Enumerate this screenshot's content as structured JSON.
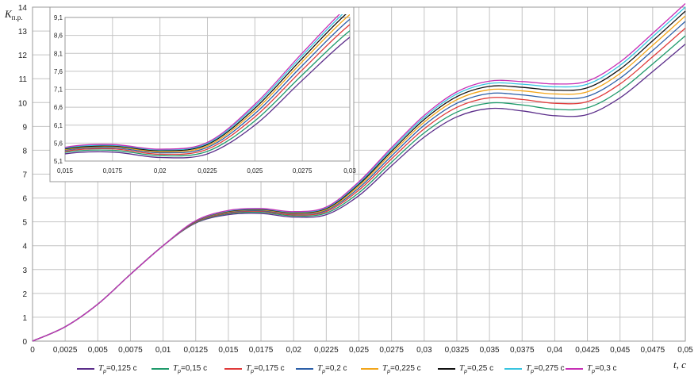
{
  "chart_data": {
    "type": "line",
    "y_axis_label": {
      "main": "K",
      "sub": "п.р."
    },
    "x_axis_label": "t, c",
    "xlim": [
      0,
      0.05
    ],
    "ylim": [
      0,
      14
    ],
    "x_ticks": [
      "0",
      "0,0025",
      "0,005",
      "0,0075",
      "0,01",
      "0,0125",
      "0,015",
      "0,0175",
      "0,02",
      "0,0225",
      "0,025",
      "0,0275",
      "0,03",
      "0,0325",
      "0,035",
      "0,0375",
      "0,04",
      "0,0425",
      "0,045",
      "0,0475",
      "0,05"
    ],
    "y_ticks": [
      "0",
      "1",
      "2",
      "3",
      "4",
      "5",
      "6",
      "7",
      "8",
      "9",
      "10",
      "11",
      "12",
      "13",
      "14"
    ],
    "grid": true,
    "x": [
      0,
      0.0025,
      0.005,
      0.0075,
      0.01,
      0.0125,
      0.015,
      0.0175,
      0.02,
      0.0225,
      0.025,
      0.0275,
      0.03,
      0.0325,
      0.035,
      0.0375,
      0.04,
      0.0425,
      0.045,
      0.0475,
      0.05
    ],
    "series": [
      {
        "name": "Tp=0,125 c",
        "color": "#5b2d8a",
        "values": [
          0,
          0.6,
          1.55,
          2.8,
          4.0,
          4.95,
          5.3,
          5.35,
          5.2,
          5.3,
          6.1,
          7.35,
          8.55,
          9.4,
          9.75,
          9.65,
          9.45,
          9.5,
          10.2,
          11.3,
          12.45
        ]
      },
      {
        "name": "Tp=0,15 c",
        "color": "#1f9a6b",
        "values": [
          0,
          0.6,
          1.55,
          2.8,
          4.0,
          4.97,
          5.34,
          5.4,
          5.25,
          5.37,
          6.22,
          7.5,
          8.73,
          9.6,
          9.98,
          9.9,
          9.72,
          9.78,
          10.5,
          11.62,
          12.8
        ]
      },
      {
        "name": "Tp=0,175 c",
        "color": "#e03a3a",
        "values": [
          0,
          0.6,
          1.55,
          2.8,
          4.0,
          4.99,
          5.37,
          5.44,
          5.29,
          5.43,
          6.33,
          7.64,
          8.9,
          9.8,
          10.2,
          10.13,
          9.97,
          10.04,
          10.78,
          11.92,
          13.12
        ]
      },
      {
        "name": "Tp=0,2 c",
        "color": "#2c5fa8",
        "values": [
          0,
          0.6,
          1.55,
          2.8,
          4.0,
          5.01,
          5.4,
          5.47,
          5.33,
          5.48,
          6.42,
          7.76,
          9.05,
          9.97,
          10.38,
          10.32,
          10.18,
          10.26,
          11.02,
          12.18,
          13.4
        ]
      },
      {
        "name": "Tp=0,225 c",
        "color": "#f2a51a",
        "values": [
          0,
          0.6,
          1.55,
          2.8,
          4.0,
          5.02,
          5.42,
          5.5,
          5.36,
          5.52,
          6.5,
          7.87,
          9.18,
          10.12,
          10.54,
          10.49,
          10.36,
          10.45,
          11.22,
          12.4,
          13.63
        ]
      },
      {
        "name": "Tp=0,25 c",
        "color": "#111111",
        "values": [
          0,
          0.6,
          1.55,
          2.8,
          4.0,
          5.03,
          5.44,
          5.52,
          5.39,
          5.56,
          6.57,
          7.96,
          9.29,
          10.25,
          10.68,
          10.64,
          10.52,
          10.62,
          11.4,
          12.59,
          13.83
        ]
      },
      {
        "name": "Tp=0,275 c",
        "color": "#38c4e0",
        "values": [
          0,
          0.6,
          1.55,
          2.8,
          4.0,
          5.04,
          5.46,
          5.54,
          5.41,
          5.59,
          6.63,
          8.04,
          9.38,
          10.36,
          10.8,
          10.77,
          10.66,
          10.77,
          11.56,
          12.76,
          14.0
        ]
      },
      {
        "name": "Tp=0,3 c",
        "color": "#c72fb5",
        "values": [
          0,
          0.6,
          1.55,
          2.8,
          4.0,
          5.05,
          5.48,
          5.56,
          5.43,
          5.62,
          6.68,
          8.11,
          9.46,
          10.45,
          10.9,
          10.88,
          10.78,
          10.9,
          11.7,
          12.9,
          14.15
        ]
      }
    ],
    "inset": {
      "xlim": [
        0.015,
        0.03
      ],
      "ylim": [
        5.1,
        9.1
      ],
      "x_ticks": [
        "0,015",
        "0,0175",
        "0,02",
        "0,0225",
        "0,025",
        "0,0275",
        "0,03"
      ],
      "y_ticks": [
        "5,1",
        "5,6",
        "6,1",
        "6,6",
        "7,1",
        "7,6",
        "8,1",
        "8,6",
        "9,1"
      ]
    },
    "legend_position": "bottom"
  },
  "legend": [
    {
      "prefix": "T",
      "sub": "p",
      "rest": "=0,125 c",
      "color": "#5b2d8a"
    },
    {
      "prefix": "T",
      "sub": "p",
      "rest": "=0,15 c",
      "color": "#1f9a6b"
    },
    {
      "prefix": "T",
      "sub": "p",
      "rest": "=0,175 c",
      "color": "#e03a3a"
    },
    {
      "prefix": "T",
      "sub": "p",
      "rest": "=0,2 c",
      "color": "#2c5fa8"
    },
    {
      "prefix": "T",
      "sub": "p",
      "rest": "=0,225 c",
      "color": "#f2a51a"
    },
    {
      "prefix": "T",
      "sub": "p",
      "rest": "=0,25 c",
      "color": "#111111"
    },
    {
      "prefix": "T",
      "sub": "p",
      "rest": "=0,275 c",
      "color": "#38c4e0"
    },
    {
      "prefix": "T",
      "sub": "p",
      "rest": "=0,3 c",
      "color": "#c72fb5"
    }
  ]
}
